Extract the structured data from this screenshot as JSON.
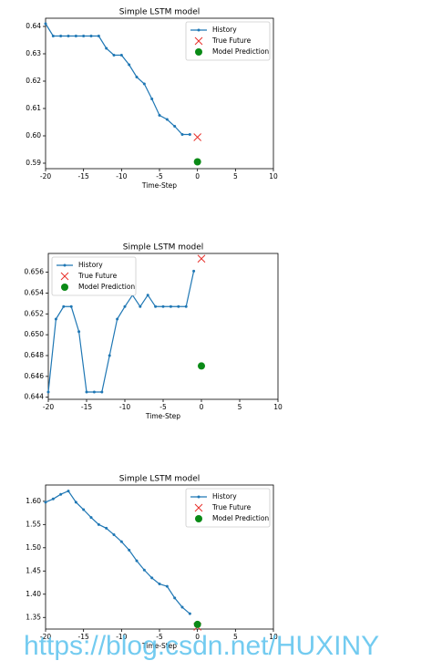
{
  "chart_data": [
    {
      "type": "line",
      "title": "Simple LSTM model",
      "xlabel": "Time-Step",
      "xlim": [
        -20,
        10
      ],
      "xticks": [
        -20,
        -15,
        -10,
        -5,
        0,
        5,
        10
      ],
      "ylim": [
        0.588,
        0.643
      ],
      "yticks": [
        0.59,
        {
          "value": 0.6,
          "label": "0.60"
        },
        0.61,
        0.62,
        0.63,
        0.64
      ],
      "legend": "upper right",
      "series": [
        {
          "name": "History",
          "color": "#1f77b4",
          "marker": "line",
          "x": [
            -20,
            -19,
            -18,
            -17,
            -16,
            -15,
            -14,
            -13,
            -12,
            -11,
            -10,
            -9,
            -8,
            -7,
            -6,
            -5,
            -4,
            -3,
            -2,
            -1
          ],
          "values": [
            0.641,
            0.6365,
            0.6365,
            0.6365,
            0.6365,
            0.6365,
            0.6365,
            0.6365,
            0.632,
            0.6295,
            0.6295,
            0.626,
            0.6215,
            0.619,
            0.6135,
            0.6075,
            0.606,
            0.6035,
            0.6005,
            0.6005
          ]
        },
        {
          "name": "True Future",
          "color": "#e8302a",
          "marker": "x",
          "x": [
            0
          ],
          "values": [
            0.5995
          ]
        },
        {
          "name": "Model Prediction",
          "color": "#0a8a16",
          "marker": "dot",
          "x": [
            0
          ],
          "values": [
            0.5905
          ]
        }
      ]
    },
    {
      "type": "line",
      "title": "Simple LSTM model",
      "xlabel": "Time-Step",
      "xlim": [
        -20,
        10
      ],
      "xticks": [
        -20,
        -15,
        -10,
        -5,
        0,
        5,
        10
      ],
      "ylim": [
        0.6438,
        0.6578
      ],
      "yticks": [
        0.644,
        0.646,
        0.648,
        {
          "value": 0.65,
          "label": "0.650"
        },
        0.652,
        0.654,
        0.656
      ],
      "legend": "upper left",
      "series": [
        {
          "name": "History",
          "color": "#1f77b4",
          "marker": "line",
          "x": [
            -20,
            -19,
            -18,
            -17,
            -16,
            -15,
            -14,
            -13,
            -12,
            -11,
            -10,
            -9,
            -8,
            -7,
            -6,
            -5,
            -4,
            -3,
            -2,
            -1
          ],
          "values": [
            0.6445,
            0.6515,
            0.6527,
            0.6527,
            0.6503,
            0.6445,
            0.6445,
            0.6445,
            0.648,
            0.6515,
            0.6527,
            0.6538,
            0.6527,
            0.6538,
            0.6527,
            0.6527,
            0.6527,
            0.6527,
            0.6527,
            0.6561
          ]
        },
        {
          "name": "True Future",
          "color": "#e8302a",
          "marker": "x",
          "x": [
            0
          ],
          "values": [
            0.6573
          ]
        },
        {
          "name": "Model Prediction",
          "color": "#0a8a16",
          "marker": "dot",
          "x": [
            0
          ],
          "values": [
            0.647
          ]
        }
      ]
    },
    {
      "type": "line",
      "title": "Simple LSTM model",
      "xlabel": "Time-Step",
      "xlim": [
        -20,
        10
      ],
      "xticks": [
        -20,
        -15,
        -10,
        -5,
        0,
        5,
        10
      ],
      "ylim": [
        1.325,
        1.635
      ],
      "yticks": [
        1.35,
        {
          "value": 1.4,
          "label": "1.40"
        },
        1.45,
        {
          "value": 1.5,
          "label": "1.50"
        },
        1.55,
        {
          "value": 1.6,
          "label": "1.60"
        }
      ],
      "legend": "upper right",
      "series": [
        {
          "name": "History",
          "color": "#1f77b4",
          "marker": "line",
          "x": [
            -20,
            -19,
            -18,
            -17,
            -16,
            -15,
            -14,
            -13,
            -12,
            -11,
            -10,
            -9,
            -8,
            -7,
            -6,
            -5,
            -4,
            -3,
            -2,
            -1
          ],
          "values": [
            1.598,
            1.605,
            1.615,
            1.622,
            1.598,
            1.582,
            1.565,
            1.55,
            1.542,
            1.528,
            1.513,
            1.495,
            1.472,
            1.452,
            1.435,
            1.422,
            1.417,
            1.392,
            1.372,
            1.358
          ]
        },
        {
          "name": "True Future",
          "color": "#e8302a",
          "marker": "x",
          "x": [
            0
          ],
          "values": [
            1.33
          ]
        },
        {
          "name": "Model Prediction",
          "color": "#0a8a16",
          "marker": "dot",
          "x": [
            0
          ],
          "values": [
            1.335
          ]
        }
      ]
    }
  ],
  "watermark": "https://blog.csdn.net/HUXINY"
}
